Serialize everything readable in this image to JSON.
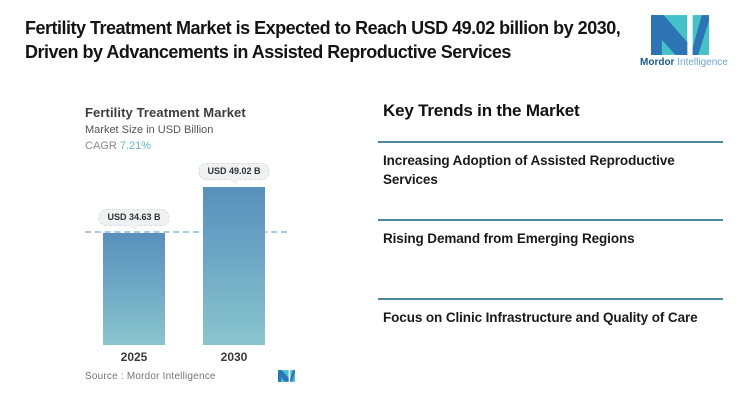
{
  "header": {
    "title": "Fertility Treatment Market is Expected to Reach USD 49.02 billion by 2030, Driven by Advancements in Assisted Reproductive Services",
    "brand": {
      "word1": "Mordor",
      "word2": "Intelligence"
    }
  },
  "chart": {
    "title": "Fertility Treatment Market",
    "subtitle": "Market Size in USD Billion",
    "cagr_label": "CAGR",
    "cagr_value": "7.21%",
    "source_text": "Source :  Mordor Intelligence"
  },
  "chart_data": {
    "type": "bar",
    "title": "Fertility Treatment Market",
    "ylabel": "Market Size in USD Billion",
    "categories": [
      "2025",
      "2030"
    ],
    "values": [
      34.63,
      49.02
    ],
    "value_labels": [
      "USD 34.63 B",
      "USD 49.02 B"
    ],
    "cagr_percent": 7.21,
    "ylim": [
      0,
      57
    ],
    "grid": false,
    "annotations": [
      "dashed reference line at 2025 value (34.63)"
    ],
    "bar_gradient": [
      "#5990bc",
      "#8ac5ce"
    ]
  },
  "trends": {
    "heading": "Key Trends in the Market",
    "items": [
      "Increasing Adoption of Assisted Reproductive Services",
      "Rising Demand from Emerging Regions",
      "Focus on Clinic Infrastructure and Quality of Care"
    ]
  },
  "colors": {
    "logo_teal": "#45c2c8",
    "logo_blue": "#2d74b5",
    "divider_blue": "#4e87a0",
    "cagr_teal": "#64b6cb",
    "dash_line": "#a5c4dc"
  }
}
